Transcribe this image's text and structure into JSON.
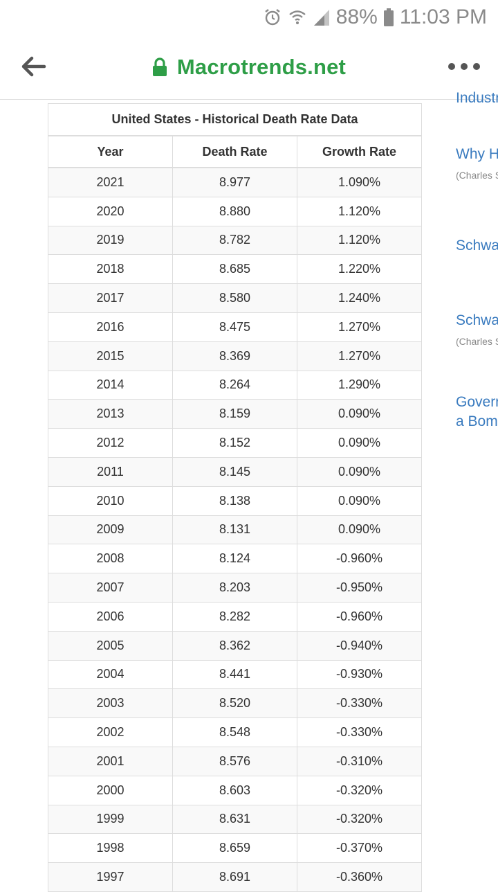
{
  "status_bar": {
    "battery": "88%",
    "time": "11:03 PM",
    "icons": [
      "alarm-icon",
      "wifi-icon",
      "signal-icon",
      "battery-icon"
    ]
  },
  "toolbar": {
    "url": "Macrotrends.net",
    "icons": [
      "back-arrow-icon",
      "lock-icon",
      "more-menu-icon"
    ],
    "accent_color": "#2e9e47"
  },
  "table": {
    "title": "United States - Historical Death Rate Data",
    "columns": [
      "Year",
      "Death Rate",
      "Growth Rate"
    ],
    "rows": [
      [
        "2021",
        "8.977",
        "1.090%"
      ],
      [
        "2020",
        "8.880",
        "1.120%"
      ],
      [
        "2019",
        "8.782",
        "1.120%"
      ],
      [
        "2018",
        "8.685",
        "1.220%"
      ],
      [
        "2017",
        "8.580",
        "1.240%"
      ],
      [
        "2016",
        "8.475",
        "1.270%"
      ],
      [
        "2015",
        "8.369",
        "1.270%"
      ],
      [
        "2014",
        "8.264",
        "1.290%"
      ],
      [
        "2013",
        "8.159",
        "0.090%"
      ],
      [
        "2012",
        "8.152",
        "0.090%"
      ],
      [
        "2011",
        "8.145",
        "0.090%"
      ],
      [
        "2010",
        "8.138",
        "0.090%"
      ],
      [
        "2009",
        "8.131",
        "0.090%"
      ],
      [
        "2008",
        "8.124",
        "-0.960%"
      ],
      [
        "2007",
        "8.203",
        "-0.950%"
      ],
      [
        "2006",
        "8.282",
        "-0.960%"
      ],
      [
        "2005",
        "8.362",
        "-0.940%"
      ],
      [
        "2004",
        "8.441",
        "-0.930%"
      ],
      [
        "2003",
        "8.520",
        "-0.330%"
      ],
      [
        "2002",
        "8.548",
        "-0.330%"
      ],
      [
        "2001",
        "8.576",
        "-0.310%"
      ],
      [
        "2000",
        "8.603",
        "-0.320%"
      ],
      [
        "1999",
        "8.631",
        "-0.320%"
      ],
      [
        "1998",
        "8.659",
        "-0.370%"
      ],
      [
        "1997",
        "8.691",
        "-0.360%"
      ]
    ]
  },
  "sidebar": {
    "items": [
      {
        "text": "Industr",
        "type": "link"
      },
      {
        "text": "Why H",
        "type": "link"
      },
      {
        "text": "(Charles S",
        "type": "source"
      },
      {
        "text": "Schwa",
        "type": "link"
      },
      {
        "text": "Schwa",
        "type": "link"
      },
      {
        "text": "(Charles S",
        "type": "source"
      },
      {
        "text": "Goverr",
        "type": "link"
      },
      {
        "text": "a Bom",
        "type": "link"
      }
    ],
    "link_color": "#3a7bbf"
  }
}
